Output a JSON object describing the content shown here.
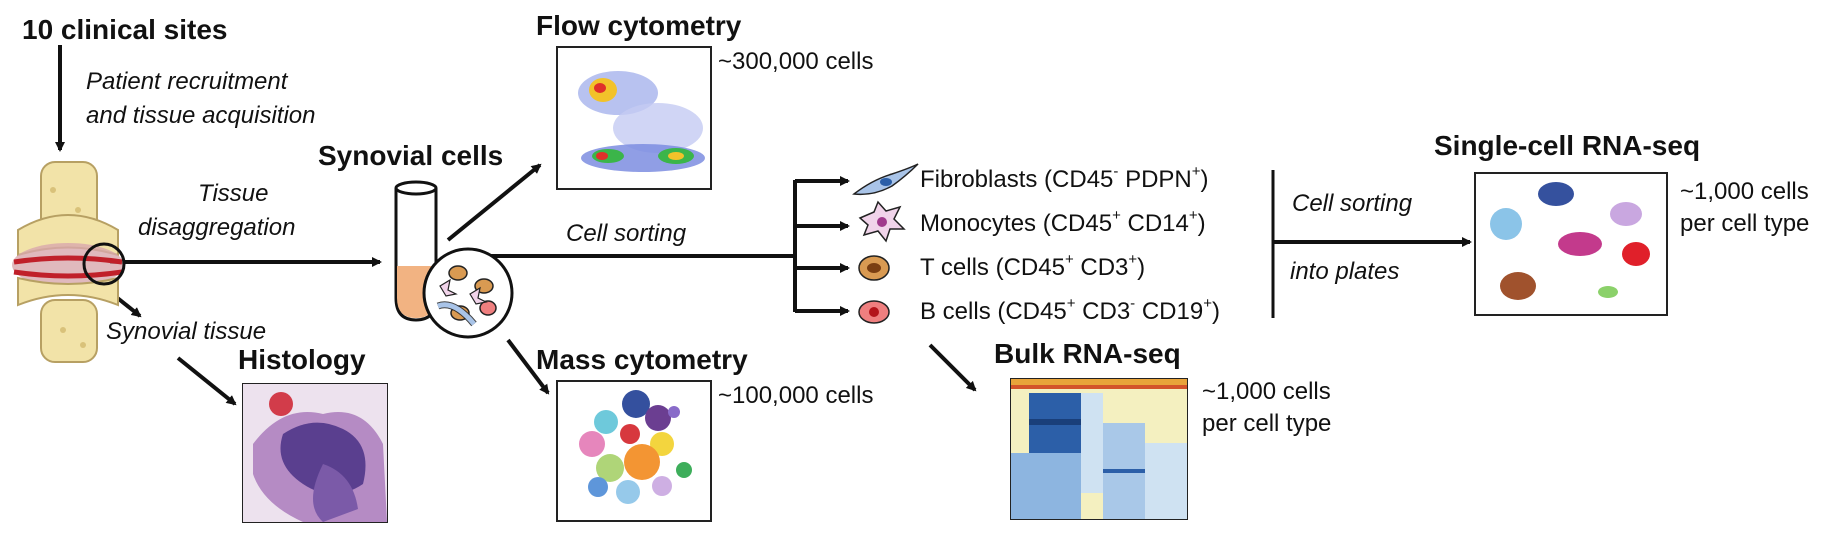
{
  "sites": {
    "title": "10 clinical sites",
    "step_line1": "Patient recruitment",
    "step_line2": "and tissue acquisition"
  },
  "tissue": {
    "arrow_label_line1": "Tissue",
    "arrow_label_line2": "disaggregation",
    "synovial_label": "Synovial tissue"
  },
  "histology": {
    "title": "Histology"
  },
  "synovial": {
    "title": "Synovial cells",
    "sorting_label": "Cell sorting"
  },
  "flow": {
    "title": "Flow cytometry",
    "count": "~300,000 cells"
  },
  "mass": {
    "title": "Mass cytometry",
    "count": "~100,000 cells"
  },
  "cell_types": [
    {
      "name": "Fibroblasts (CD45",
      "sup1": "-",
      "mid": " PDPN",
      "sup2": "+",
      "end": ")",
      "sup3": "",
      "tail": ""
    },
    {
      "name": "Monocytes (CD45",
      "sup1": "+",
      "mid": " CD14",
      "sup2": "+",
      "end": ")",
      "sup3": "",
      "tail": ""
    },
    {
      "name": "T cells (CD45",
      "sup1": "+",
      "mid": " CD3",
      "sup2": "+",
      "end": ")",
      "sup3": "",
      "tail": ""
    },
    {
      "name": "B cells (CD45",
      "sup1": "+",
      "mid": " CD3",
      "sup2": "-",
      "end": " CD19",
      "sup3": "+",
      "tail": ")"
    }
  ],
  "bulk": {
    "title": "Bulk RNA-seq",
    "count_line1": "~1,000 cells",
    "count_line2": "per cell type"
  },
  "sc": {
    "title": "Single-cell RNA-seq",
    "sorting_line1": "Cell sorting",
    "sorting_line2": "into plates",
    "count_line1": "~1,000 cells",
    "count_line2": "per cell type"
  },
  "colors": {
    "fibroblast": "#a9c4e8",
    "monocyte": "#f1d4ea",
    "tcell": "#d99a52",
    "bcell": "#ef7f7f",
    "heatmap_yellow": "#f4f0c0",
    "heatmap_blue": "#2c5fa8"
  }
}
